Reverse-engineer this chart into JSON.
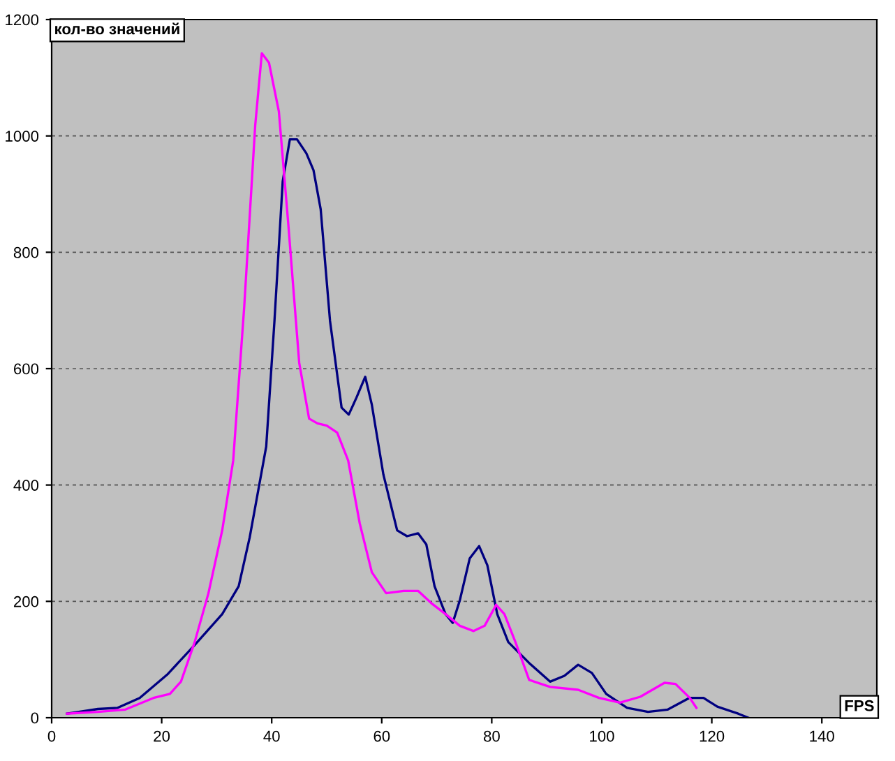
{
  "chart_data": {
    "type": "line",
    "xlabel": "FPS",
    "ylabel": "кол-во значений",
    "xlim": [
      0,
      150
    ],
    "ylim": [
      0,
      1200
    ],
    "xticks": [
      0,
      20,
      40,
      60,
      80,
      100,
      120,
      140
    ],
    "yticks": [
      0,
      200,
      400,
      600,
      800,
      1000,
      1200
    ],
    "grid": "y",
    "legend": false,
    "marker": "none",
    "line_style": "solid",
    "series": [
      {
        "color": "#000080",
        "x": [
          2.8,
          8.4,
          12,
          16,
          21,
          26,
          31,
          34,
          36,
          39,
          40.5,
          42,
          43.3,
          44.6,
          46.3,
          47.6,
          48.9,
          50.6,
          52.7,
          54,
          55.4,
          57,
          58.2,
          60.3,
          62.8,
          64.6,
          66.6,
          68.1,
          69.6,
          71.6,
          72.9,
          74.2,
          76,
          77.7,
          79.2,
          81,
          83,
          86.8,
          90.6,
          93.2,
          95.7,
          98.2,
          100.8,
          104.6,
          108.4,
          112,
          115.9,
          118.5,
          121,
          124.8,
          126.6
        ],
        "values": [
          7,
          15,
          17,
          34,
          74,
          125,
          178,
          226,
          310,
          466,
          682,
          922,
          994,
          994,
          970,
          941,
          874,
          682,
          533,
          521,
          550,
          586,
          538,
          418,
          322,
          312,
          317,
          298,
          226,
          178,
          163,
          202,
          274,
          295,
          262,
          178,
          130,
          94,
          62,
          72,
          91,
          77,
          41,
          17,
          10,
          14,
          34,
          34,
          19,
          7,
          0
        ]
      },
      {
        "color": "#ff00ff",
        "x": [
          2.8,
          8.4,
          13.4,
          18.5,
          21.5,
          23.5,
          26,
          28.5,
          31,
          33,
          35,
          37,
          38.2,
          39.5,
          41.3,
          43,
          45,
          46.8,
          48.3,
          50,
          51.9,
          53.9,
          56,
          58.2,
          60.8,
          64,
          66.6,
          69,
          71.6,
          74.2,
          76.7,
          78.7,
          80.8,
          82.3,
          84.3,
          86.8,
          90.6,
          95.7,
          99.5,
          103.3,
          107,
          111.4,
          113.4,
          116,
          117.2
        ],
        "values": [
          7,
          10,
          14,
          34,
          41,
          62,
          130,
          214,
          322,
          442,
          706,
          1018,
          1142,
          1126,
          1042,
          850,
          610,
          514,
          506,
          502,
          490,
          442,
          334,
          250,
          214,
          218,
          218,
          197,
          178,
          158,
          149,
          158,
          194,
          178,
          130,
          65,
          53,
          48,
          34,
          26,
          36,
          60,
          58,
          34,
          17
        ]
      }
    ]
  }
}
